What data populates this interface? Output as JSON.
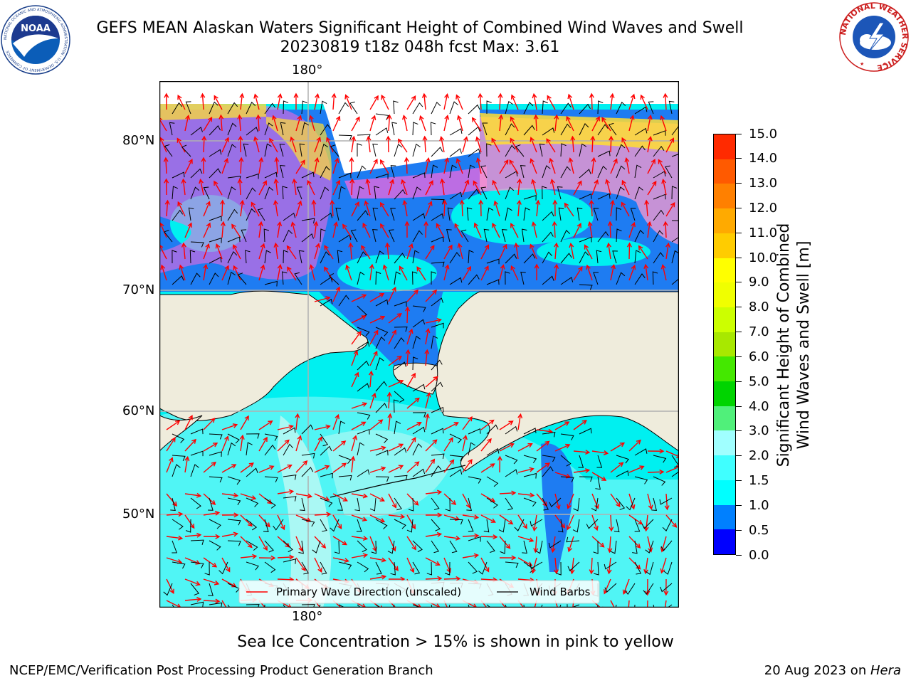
{
  "header": {
    "title_line1": "GEFS MEAN Alaskan Waters Significant Height of Combined Wind Waves and Swell",
    "title_line2": "20230819 t18z 048h fcst   Max: 3.61"
  },
  "logos": {
    "noaa_text": "NOAA",
    "noaa_ring_text": "NATIONAL OCEANIC AND ATMOSPHERIC ADMINISTRATION · U.S. DEPARTMENT OF COMMERCE",
    "nws_ring_text": "NATIONAL WEATHER SERVICE"
  },
  "map": {
    "lon_label_top": "180°",
    "lon_label_bottom": "180°",
    "lat_labels": [
      "80°N",
      "70°N",
      "60°N",
      "50°N"
    ],
    "colors": {
      "land": "#efecdc",
      "wave_0_5": "#0055ff",
      "wave_0_5_1": "#1e7cf2",
      "wave_1_1_5": "#00f0f0",
      "wave_1_5_2": "#5ef6f6",
      "wave_2_3": "#aaf8f4",
      "ice_low": "#ff66dd",
      "ice_mid": "#ff99cc",
      "ice_high": "#ffdd33",
      "arrow": "#ff0000",
      "barb": "#000000"
    },
    "legend": {
      "wave_direction_label": "Primary Wave Direction (unscaled)",
      "wind_barbs_label": "Wind Barbs"
    }
  },
  "colorbar": {
    "label_line1": "Significant Height of Combined",
    "label_line2": "Wind Waves and Swell [m]",
    "ticks": [
      "0.0",
      "0.5",
      "1.0",
      "1.5",
      "2.0",
      "3.0",
      "4.0",
      "5.0",
      "6.0",
      "7.0",
      "8.0",
      "9.0",
      "10.0",
      "11.0",
      "12.0",
      "13.0",
      "14.0",
      "15.0"
    ],
    "colors": [
      "#0000ff",
      "#0080ff",
      "#00ffff",
      "#40ffff",
      "#a0ffff",
      "#50f07a",
      "#00d400",
      "#44e800",
      "#a8e800",
      "#ccff00",
      "#f0ff00",
      "#ffff00",
      "#ffcc00",
      "#ffaa00",
      "#ff8000",
      "#ff5a00",
      "#ff2a00"
    ]
  },
  "caption": "Sea Ice Concentration > 15% is shown in pink to yellow",
  "footer": {
    "left": "NCEP/EMC/Verification Post Processing Product Generation Branch",
    "date": "20 Aug 2023 on ",
    "host": "Hera"
  }
}
